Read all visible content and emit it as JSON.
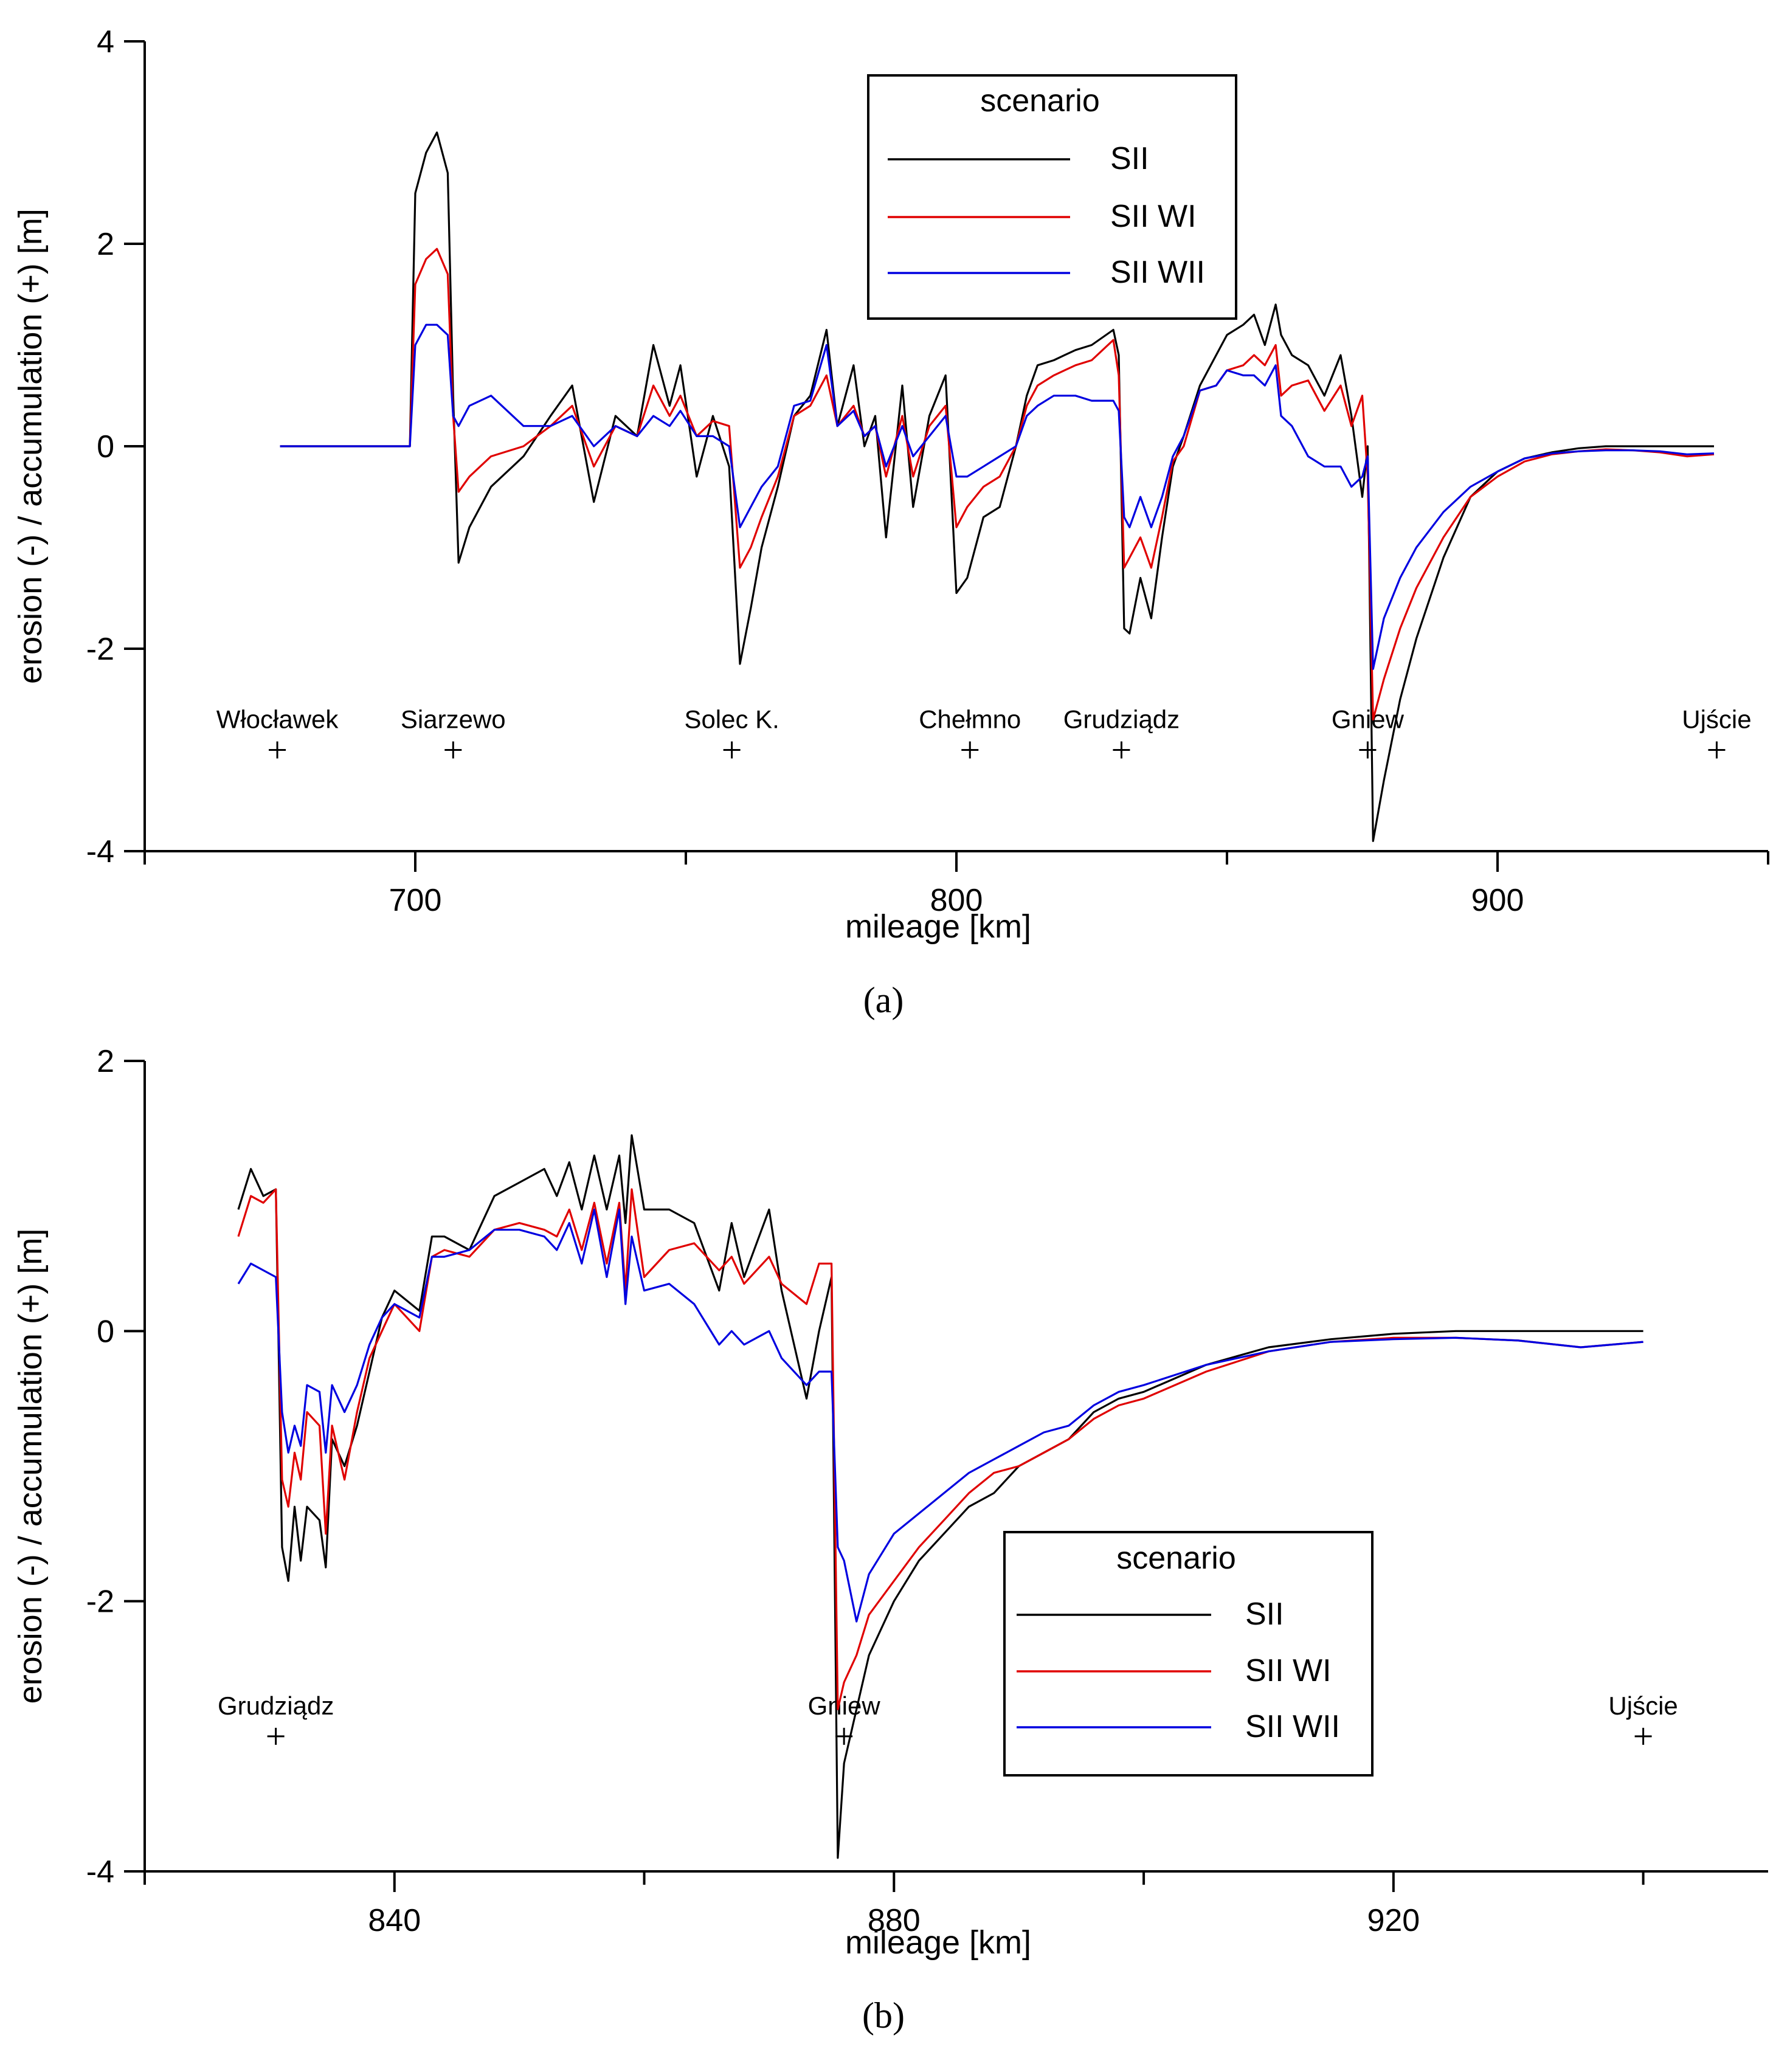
{
  "chart_data": [
    {
      "panel_label": "(a)",
      "type": "line",
      "xlabel": "mileage [km]",
      "ylabel": "erosion (-) / accumulation (+) [m]",
      "xlim": [
        650,
        950
      ],
      "ylim": [
        -4,
        4
      ],
      "xticks": [
        700,
        800,
        900
      ],
      "yticks": [
        -4,
        -2,
        0,
        2,
        4
      ],
      "legend": {
        "title": "scenario",
        "position": "top-center"
      },
      "series": [
        {
          "name": "SII",
          "color": "#000000",
          "x": [
            675,
            699,
            700,
            702,
            704,
            706,
            707,
            708,
            710,
            714,
            720,
            725,
            729,
            733,
            737,
            741,
            744,
            747,
            749,
            752,
            755,
            758,
            760,
            762,
            764,
            767,
            770,
            773,
            776,
            778,
            781,
            783,
            785,
            787,
            790,
            792,
            795,
            798,
            800,
            802,
            805,
            808,
            811,
            813,
            815,
            818,
            820,
            822,
            825,
            829,
            830,
            831,
            832,
            834,
            836,
            838,
            840,
            842,
            845,
            848,
            850,
            853,
            855,
            857,
            859,
            860,
            862,
            865,
            868,
            871,
            873,
            875,
            876,
            877,
            879,
            882,
            885,
            890,
            895,
            900,
            905,
            910,
            915,
            920,
            925,
            930,
            935,
            940
          ],
          "y": [
            0,
            0,
            2.5,
            2.9,
            3.1,
            2.7,
            0.5,
            -1.15,
            -0.8,
            -0.4,
            -0.1,
            0.3,
            0.6,
            -0.55,
            0.3,
            0.1,
            1.0,
            0.4,
            0.8,
            -0.3,
            0.3,
            -0.2,
            -2.15,
            -1.6,
            -1.0,
            -0.4,
            0.3,
            0.5,
            1.15,
            0.2,
            0.8,
            0.0,
            0.3,
            -0.9,
            0.6,
            -0.6,
            0.3,
            0.7,
            -1.45,
            -1.3,
            -0.7,
            -0.6,
            0.0,
            0.5,
            0.8,
            0.85,
            0.9,
            0.95,
            1.0,
            1.15,
            0.9,
            -1.8,
            -1.85,
            -1.3,
            -1.7,
            -0.9,
            -0.2,
            0.1,
            0.6,
            0.9,
            1.1,
            1.2,
            1.3,
            1.0,
            1.4,
            1.1,
            0.9,
            0.8,
            0.5,
            0.9,
            0.3,
            -0.5,
            0.0,
            -3.9,
            -3.3,
            -2.5,
            -1.9,
            -1.1,
            -0.5,
            -0.25,
            -0.12,
            -0.06,
            -0.02,
            0.0,
            0.0,
            0.0,
            0.0,
            0.0
          ]
        },
        {
          "name": "SII WI",
          "color": "#e00000",
          "x": [
            675,
            699,
            700,
            702,
            704,
            706,
            707,
            708,
            710,
            714,
            720,
            725,
            729,
            733,
            737,
            741,
            744,
            747,
            749,
            752,
            755,
            758,
            760,
            762,
            764,
            767,
            770,
            773,
            776,
            778,
            781,
            783,
            785,
            787,
            790,
            792,
            795,
            798,
            800,
            802,
            805,
            808,
            811,
            813,
            815,
            818,
            820,
            822,
            825,
            829,
            830,
            831,
            832,
            834,
            836,
            838,
            840,
            842,
            845,
            848,
            850,
            853,
            855,
            857,
            859,
            860,
            862,
            865,
            868,
            871,
            873,
            875,
            876,
            877,
            879,
            882,
            885,
            890,
            895,
            900,
            905,
            910,
            915,
            920,
            925,
            930,
            935,
            940
          ],
          "y": [
            0,
            0,
            1.6,
            1.85,
            1.95,
            1.7,
            0.3,
            -0.45,
            -0.3,
            -0.1,
            0.0,
            0.2,
            0.4,
            -0.2,
            0.2,
            0.1,
            0.6,
            0.3,
            0.5,
            0.1,
            0.25,
            0.2,
            -1.2,
            -1.0,
            -0.7,
            -0.3,
            0.3,
            0.4,
            0.7,
            0.2,
            0.4,
            0.1,
            0.2,
            -0.3,
            0.3,
            -0.3,
            0.2,
            0.4,
            -0.8,
            -0.6,
            -0.4,
            -0.3,
            0.0,
            0.4,
            0.6,
            0.7,
            0.75,
            0.8,
            0.85,
            1.05,
            0.7,
            -1.2,
            -1.1,
            -0.9,
            -1.2,
            -0.7,
            -0.15,
            0.0,
            0.55,
            0.6,
            0.75,
            0.8,
            0.9,
            0.8,
            1.0,
            0.5,
            0.6,
            0.65,
            0.35,
            0.6,
            0.2,
            0.5,
            -0.3,
            -2.7,
            -2.3,
            -1.8,
            -1.4,
            -0.9,
            -0.5,
            -0.3,
            -0.15,
            -0.08,
            -0.05,
            -0.03,
            -0.04,
            -0.06,
            -0.1,
            -0.08
          ]
        },
        {
          "name": "SII WII",
          "color": "#0000e0",
          "x": [
            675,
            699,
            700,
            702,
            704,
            706,
            707,
            708,
            710,
            714,
            720,
            725,
            729,
            733,
            737,
            741,
            744,
            747,
            749,
            752,
            755,
            758,
            760,
            762,
            764,
            767,
            770,
            773,
            776,
            778,
            781,
            783,
            785,
            787,
            790,
            792,
            795,
            798,
            800,
            802,
            805,
            808,
            811,
            813,
            815,
            818,
            820,
            822,
            825,
            829,
            830,
            831,
            832,
            834,
            836,
            838,
            840,
            842,
            845,
            848,
            850,
            853,
            855,
            857,
            859,
            860,
            862,
            865,
            868,
            871,
            873,
            875,
            876,
            877,
            879,
            882,
            885,
            890,
            895,
            900,
            905,
            910,
            915,
            920,
            925,
            930,
            935,
            940
          ],
          "y": [
            0,
            0,
            1.0,
            1.2,
            1.2,
            1.1,
            0.3,
            0.2,
            0.4,
            0.5,
            0.2,
            0.2,
            0.3,
            0.0,
            0.2,
            0.1,
            0.3,
            0.2,
            0.35,
            0.1,
            0.1,
            0.0,
            -0.8,
            -0.6,
            -0.4,
            -0.2,
            0.4,
            0.45,
            1.0,
            0.2,
            0.35,
            0.1,
            0.2,
            -0.2,
            0.2,
            -0.1,
            0.1,
            0.3,
            -0.3,
            -0.3,
            -0.2,
            -0.1,
            0.0,
            0.3,
            0.4,
            0.5,
            0.5,
            0.5,
            0.45,
            0.45,
            0.35,
            -0.7,
            -0.8,
            -0.5,
            -0.8,
            -0.5,
            -0.1,
            0.1,
            0.55,
            0.6,
            0.75,
            0.7,
            0.7,
            0.6,
            0.8,
            0.3,
            0.2,
            -0.1,
            -0.2,
            -0.2,
            -0.4,
            -0.3,
            -0.1,
            -2.2,
            -1.7,
            -1.3,
            -1.0,
            -0.65,
            -0.4,
            -0.25,
            -0.12,
            -0.07,
            -0.05,
            -0.04,
            -0.04,
            -0.05,
            -0.08,
            -0.07
          ]
        }
      ],
      "annotations": [
        {
          "text": "Włocławek",
          "x": 674.5,
          "y": -3
        },
        {
          "text": "Siarzewo",
          "x": 707,
          "y": -3
        },
        {
          "text": "Solec K.",
          "x": 758.5,
          "y": -3
        },
        {
          "text": "Chełmno",
          "x": 802.5,
          "y": -3
        },
        {
          "text": "Grudziądz",
          "x": 830.5,
          "y": -3
        },
        {
          "text": "Gniew",
          "x": 876,
          "y": -3
        },
        {
          "text": "Ujście",
          "x": 940.5,
          "y": -3
        }
      ]
    },
    {
      "panel_label": "(b)",
      "type": "line",
      "xlabel": "mileage [km]",
      "ylabel": "erosion (-) / accumulation (+) [m]",
      "xlim": [
        820,
        950
      ],
      "ylim": [
        -4,
        2
      ],
      "xticks": [
        840,
        880,
        920
      ],
      "yticks": [
        -4,
        -2,
        0,
        2
      ],
      "legend": {
        "title": "scenario",
        "position": "lower-center"
      },
      "series": [
        {
          "name": "SII",
          "color": "#000000",
          "x": [
            827.5,
            828.5,
            829.5,
            830.5,
            831,
            831.5,
            832,
            832.5,
            833,
            834,
            834.5,
            835,
            836,
            837,
            838,
            839,
            840,
            842,
            843,
            844,
            846,
            848,
            850,
            852,
            853,
            854,
            855,
            856,
            857,
            858,
            858.5,
            859,
            860,
            862,
            864,
            866,
            867,
            868,
            870,
            871,
            873,
            874,
            875,
            875.5,
            876,
            877,
            878,
            880,
            882,
            884,
            886,
            888,
            890,
            892,
            894,
            896,
            898,
            900,
            905,
            910,
            915,
            920,
            925,
            930,
            935,
            940
          ],
          "y": [
            0.9,
            1.2,
            1.0,
            1.05,
            -1.6,
            -1.85,
            -1.3,
            -1.7,
            -1.3,
            -1.4,
            -1.75,
            -0.8,
            -1.0,
            -0.7,
            -0.3,
            0.1,
            0.3,
            0.15,
            0.7,
            0.7,
            0.6,
            1.0,
            1.1,
            1.2,
            1.0,
            1.25,
            0.9,
            1.3,
            0.9,
            1.3,
            0.8,
            1.45,
            0.9,
            0.9,
            0.8,
            0.3,
            0.8,
            0.4,
            0.9,
            0.3,
            -0.5,
            0.0,
            0.4,
            -3.9,
            -3.2,
            -2.8,
            -2.4,
            -2.0,
            -1.7,
            -1.5,
            -1.3,
            -1.2,
            -1.0,
            -0.9,
            -0.8,
            -0.6,
            -0.5,
            -0.45,
            -0.25,
            -0.12,
            -0.06,
            -0.02,
            0.0,
            0.0,
            0.0,
            0.0
          ]
        },
        {
          "name": "SII WI",
          "color": "#e00000",
          "x": [
            827.5,
            828.5,
            829.5,
            830.5,
            831,
            831.5,
            832,
            832.5,
            833,
            834,
            834.5,
            835,
            836,
            837,
            838,
            839,
            840,
            842,
            843,
            844,
            846,
            848,
            850,
            852,
            853,
            854,
            855,
            856,
            857,
            858,
            858.5,
            859,
            860,
            862,
            864,
            866,
            867,
            868,
            870,
            871,
            873,
            874,
            875,
            875.5,
            876,
            877,
            878,
            880,
            882,
            884,
            886,
            888,
            890,
            892,
            894,
            896,
            898,
            900,
            905,
            910,
            915,
            920,
            925,
            930,
            935,
            940
          ],
          "y": [
            0.7,
            1.0,
            0.95,
            1.05,
            -1.1,
            -1.3,
            -0.9,
            -1.1,
            -0.6,
            -0.7,
            -1.5,
            -0.7,
            -1.1,
            -0.6,
            -0.2,
            0.0,
            0.2,
            0.0,
            0.55,
            0.6,
            0.55,
            0.75,
            0.8,
            0.75,
            0.7,
            0.9,
            0.6,
            0.95,
            0.5,
            0.95,
            0.3,
            1.05,
            0.4,
            0.6,
            0.65,
            0.45,
            0.55,
            0.35,
            0.55,
            0.35,
            0.2,
            0.5,
            0.5,
            -2.8,
            -2.6,
            -2.4,
            -2.1,
            -1.85,
            -1.6,
            -1.4,
            -1.2,
            -1.05,
            -1.0,
            -0.9,
            -0.8,
            -0.65,
            -0.55,
            -0.5,
            -0.3,
            -0.15,
            -0.08,
            -0.05,
            -0.05,
            -0.07,
            -0.12,
            -0.08
          ]
        },
        {
          "name": "SII WII",
          "color": "#0000e0",
          "x": [
            827.5,
            828.5,
            829.5,
            830.5,
            831,
            831.5,
            832,
            832.5,
            833,
            834,
            834.5,
            835,
            836,
            837,
            838,
            839,
            840,
            842,
            843,
            844,
            846,
            848,
            850,
            852,
            853,
            854,
            855,
            856,
            857,
            858,
            858.5,
            859,
            860,
            862,
            864,
            866,
            867,
            868,
            870,
            871,
            873,
            874,
            875,
            875.5,
            876,
            877,
            878,
            880,
            882,
            884,
            886,
            888,
            890,
            892,
            894,
            896,
            898,
            900,
            905,
            910,
            915,
            920,
            925,
            930,
            935,
            940
          ],
          "y": [
            0.35,
            0.5,
            0.45,
            0.4,
            -0.6,
            -0.9,
            -0.7,
            -0.85,
            -0.4,
            -0.45,
            -0.9,
            -0.4,
            -0.6,
            -0.4,
            -0.1,
            0.1,
            0.2,
            0.1,
            0.55,
            0.55,
            0.6,
            0.75,
            0.75,
            0.7,
            0.6,
            0.8,
            0.5,
            0.9,
            0.4,
            0.9,
            0.2,
            0.7,
            0.3,
            0.35,
            0.2,
            -0.1,
            0.0,
            -0.1,
            0.0,
            -0.2,
            -0.4,
            -0.3,
            -0.3,
            -1.6,
            -1.7,
            -2.15,
            -1.8,
            -1.5,
            -1.35,
            -1.2,
            -1.05,
            -0.95,
            -0.85,
            -0.75,
            -0.7,
            -0.55,
            -0.45,
            -0.4,
            -0.25,
            -0.15,
            -0.08,
            -0.06,
            -0.05,
            -0.07,
            -0.12,
            -0.08
          ]
        }
      ],
      "annotations": [
        {
          "text": "Grudziądz",
          "x": 830.5,
          "y": -3
        },
        {
          "text": "Gniew",
          "x": 876,
          "y": -3
        },
        {
          "text": "Ujście",
          "x": 940,
          "y": -3
        }
      ]
    }
  ]
}
